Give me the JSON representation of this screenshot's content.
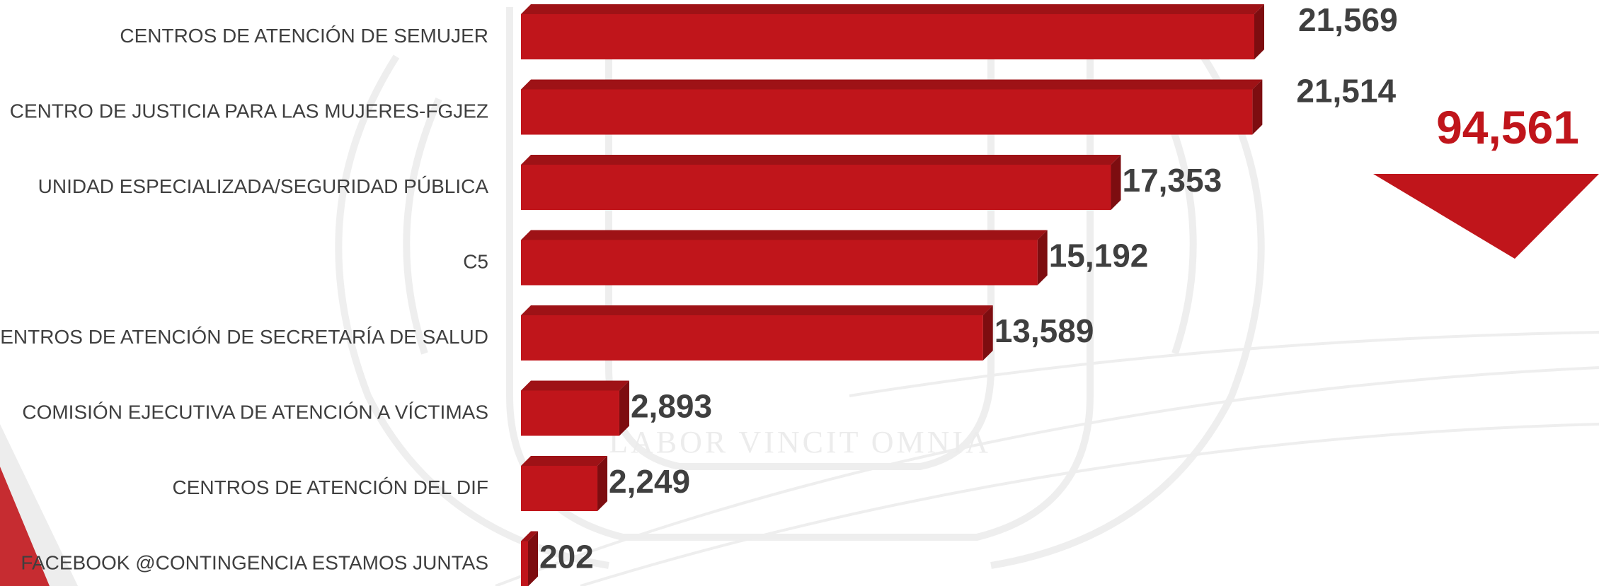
{
  "chart_data": {
    "type": "bar",
    "orientation": "horizontal",
    "categories": [
      "CENTROS DE ATENCIÓN DE SEMUJER",
      "CENTRO DE JUSTICIA PARA LAS MUJERES-FGJEZ",
      "UNIDAD ESPECIALIZADA/SEGURIDAD PÚBLICA",
      "C5",
      "CENTROS DE ATENCIÓN  DE SECRETARÍA  DE SALUD",
      "COMISIÓN EJECUTIVA DE ATENCIÓN A VÍCTIMAS",
      "CENTROS DE ATENCIÓN  DEL DIF",
      "FACEBOOK @CONTINGENCIA ESTAMOS JUNTAS"
    ],
    "values": [
      21569,
      21514,
      17353,
      15192,
      13589,
      2893,
      2249,
      202
    ],
    "value_labels": [
      "21,569",
      "21,514",
      "17,353",
      "15,192",
      "13,589",
      "2,893",
      "2,249",
      "202"
    ],
    "bar_color": "#c0151b",
    "bar_top_color": "#9e1216",
    "bar_side_color": "#7d0d10",
    "grid": false,
    "legend": false
  },
  "total": {
    "value": "94,561",
    "color": "#c0151b"
  },
  "watermark": {
    "motto": "LABOR VINCIT OMNIA"
  }
}
